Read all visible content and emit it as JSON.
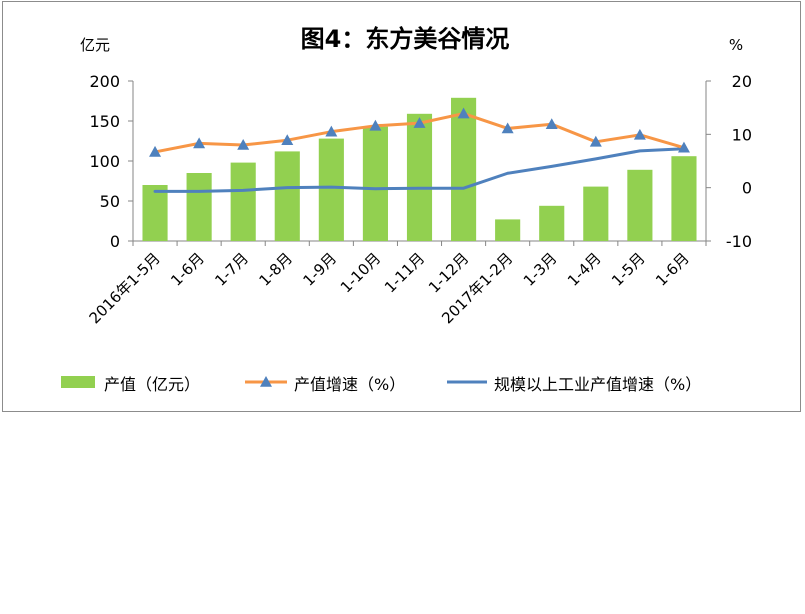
{
  "chart_data": {
    "type": "bar",
    "title": "图4：东方美谷情况",
    "left_unit": "亿元",
    "right_unit": "%",
    "categories": [
      "2016年1-5月",
      "1-6月",
      "1-7月",
      "1-8月",
      "1-9月",
      "1-10月",
      "1-11月",
      "1-12月",
      "2017年1-2月",
      "1-3月",
      "1-4月",
      "1-5月",
      "1-6月"
    ],
    "ylim_left": [
      0,
      200
    ],
    "yticks_left": [
      "200",
      "150",
      "100",
      "50",
      "0"
    ],
    "ylim_right": [
      -10,
      20
    ],
    "yticks_right": [
      "20",
      "10",
      "0",
      "-10"
    ],
    "grid": false,
    "legend_position": "bottom",
    "series": [
      {
        "name": "产值（亿元）",
        "kind": "bar",
        "axis": "left",
        "color": "#92d050",
        "values": [
          70,
          85,
          98,
          112,
          128,
          143,
          159,
          179,
          27,
          44,
          68,
          89,
          106
        ]
      },
      {
        "name": "产值增速（%）",
        "kind": "line",
        "axis": "right",
        "color": "#f79646",
        "marker": "triangle",
        "marker_color": "#4f81bd",
        "values": [
          6.7,
          8.3,
          8.0,
          8.9,
          10.5,
          11.6,
          12.1,
          13.9,
          11.1,
          11.9,
          8.6,
          9.9,
          7.5
        ]
      },
      {
        "name": "规模以上工业产值增速（%）",
        "kind": "line",
        "axis": "right",
        "color": "#4f81bd",
        "values": [
          -0.7,
          -0.7,
          -0.5,
          0.0,
          0.1,
          -0.2,
          -0.1,
          -0.1,
          2.7,
          4.0,
          5.4,
          6.9,
          7.3
        ]
      }
    ]
  }
}
